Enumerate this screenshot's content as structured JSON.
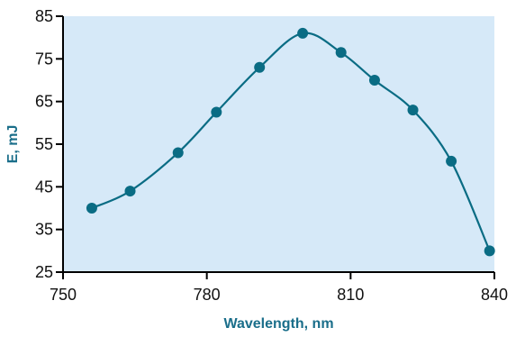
{
  "chart_data": {
    "type": "line",
    "title": "",
    "xlabel": "Wavelength, nm",
    "ylabel": "E, mJ",
    "xlim": [
      750,
      840
    ],
    "ylim": [
      25,
      85
    ],
    "xticks": [
      750,
      780,
      810,
      840
    ],
    "yticks": [
      25,
      35,
      45,
      55,
      65,
      75,
      85
    ],
    "xtick_labels": [
      "750",
      "780",
      "810",
      "840"
    ],
    "ytick_labels": [
      "25",
      "35",
      "45",
      "55",
      "65",
      "75",
      "85"
    ],
    "grid": false,
    "legend": "none",
    "smooth": true,
    "series": [
      {
        "x": [
          756,
          764,
          774,
          782,
          791,
          800,
          808,
          815,
          823,
          831,
          839
        ],
        "y": [
          40,
          44,
          53,
          62.5,
          73,
          81,
          76.5,
          70,
          63,
          51,
          30
        ]
      }
    ]
  },
  "colors": {
    "plot_background": "#d6e9f8",
    "series": "#0a6c84",
    "axis_title": "#1a6e8a",
    "axis": "#000000"
  }
}
